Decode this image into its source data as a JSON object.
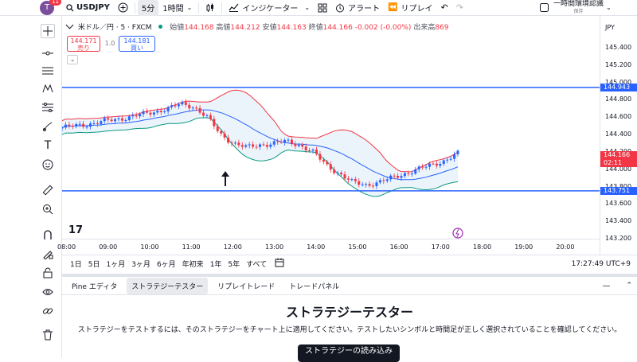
{
  "toolbar": {
    "avatar_letter": "T",
    "notification_count": "11",
    "symbol": "USDJPY",
    "interval_active": "5分",
    "interval_other": "1時間",
    "indicators_label": "インジケーター",
    "alert_label": "アラート",
    "replay_label": "リプレイ",
    "temp_auth_label": "一時間環境認識",
    "saved_label": "保存"
  },
  "legend": {
    "symbol_full": "米ドル／円 · 5 · FXCM",
    "open_label": "始値",
    "open_value": "144.168",
    "high_label": "高値",
    "high_value": "144.212",
    "low_label": "安値",
    "low_value": "144.163",
    "close_label": "終値",
    "close_value": "144.166",
    "change": "-0.002 (-0.00%)",
    "volume_label": "出来高",
    "volume_value": "869",
    "sell_price": "144.171",
    "sell_label": "売り",
    "spread": "1.0",
    "buy_price": "144.181",
    "buy_label": "買い"
  },
  "price_axis": {
    "currency": "JPY",
    "labels": [
      "145.400",
      "145.200",
      "145.000",
      "144.800",
      "144.600",
      "144.400",
      "144.200",
      "144.000",
      "143.800",
      "143.600",
      "143.400",
      "143.200"
    ],
    "hline_upper": "144.943",
    "hline_lower": "143.751",
    "last_price": "144.166",
    "countdown": "02:11"
  },
  "time_axis": {
    "labels": [
      "08:00",
      "09:00",
      "10:00",
      "11:00",
      "12:00",
      "13:00",
      "14:00",
      "15:00",
      "16:00",
      "17:00",
      "18:00",
      "19:00",
      "20:00"
    ]
  },
  "range_bar": {
    "items": [
      "1日",
      "5日",
      "1ヶ月",
      "3ヶ月",
      "6ヶ月",
      "年初来",
      "1年",
      "5年",
      "すべて"
    ],
    "clock": "17:27:49 UTC+9"
  },
  "bottom_tabs": [
    "Pine エディタ",
    "ストラテジーテスター",
    "リプレイトレード",
    "トレードパネル"
  ],
  "tester": {
    "title": "ストラテジーテスター",
    "description": "ストラテジーをテストするには、そのストラテジーをチャート上に適用してください。テストしたいシンボルと時間足が正しく選択されていることを確認してください。",
    "load_button": "ストラテジーの読み込み"
  },
  "colors": {
    "up": "#2962ff",
    "down": "#f23645",
    "hline": "#2962ff",
    "bb_upper": "#f23645",
    "bb_middle": "#2962ff",
    "bb_lower": "#089981",
    "bb_fill": "#e3f0fa"
  },
  "chart_data": {
    "type": "candlestick",
    "symbol": "USDJPY",
    "interval": "5",
    "x_start": "08:00",
    "x_end": "17:25",
    "ylim": [
      143.2,
      145.4
    ],
    "horizontal_lines": [
      144.943,
      143.751
    ],
    "close_approx": [
      144.48,
      144.5,
      144.52,
      144.55,
      144.57,
      144.6,
      144.63,
      144.66,
      144.7,
      144.75,
      144.72,
      144.6,
      144.4,
      144.3,
      144.25,
      144.28,
      144.3,
      144.32,
      144.28,
      144.2,
      144.05,
      143.95,
      143.85,
      143.82,
      143.85,
      143.9,
      143.95,
      144.0,
      144.05,
      144.1,
      144.18
    ]
  }
}
